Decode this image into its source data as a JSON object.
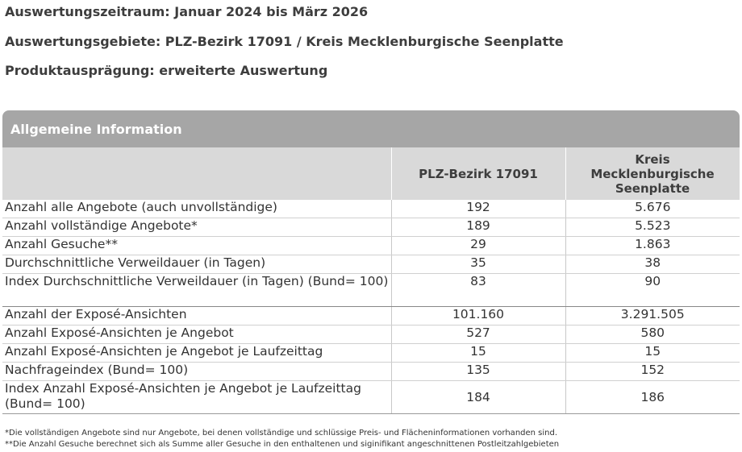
{
  "meta": {
    "zeitraum": "Auswertungszeitraum: Januar 2024 bis März 2026",
    "gebiete": "Auswertungsgebiete: PLZ-Bezirk 17091 / Kreis Mecklenburgische Seenplatte",
    "produkt": "Produktausprägung: erweiterte Auswertung"
  },
  "panel": {
    "title": "Allgemeine Information",
    "columns": [
      "",
      "PLZ-Bezirk 17091",
      "Kreis Mecklenburgische Seenplatte"
    ],
    "rows": [
      {
        "label": "Anzahl alle Angebote (auch unvollständige)",
        "plz": "192",
        "kreis": "5.676"
      },
      {
        "label": "Anzahl vollständige Angebote*",
        "plz": "189",
        "kreis": "5.523"
      },
      {
        "label": "Anzahl Gesuche**",
        "plz": "29",
        "kreis": "1.863"
      },
      {
        "label": "Durchschnittliche Verweildauer (in Tagen)",
        "plz": "35",
        "kreis": "38"
      },
      {
        "label": "Index Durchschnittliche Verweildauer (in Tagen) (Bund= 100)",
        "plz": "83",
        "kreis": "90"
      },
      {
        "label": "Anzahl der Exposé-Ansichten",
        "plz": "101.160",
        "kreis": "3.291.505"
      },
      {
        "label": "Anzahl Exposé-Ansichten je Angebot",
        "plz": "527",
        "kreis": "580"
      },
      {
        "label": "Anzahl Exposé-Ansichten je Angebot je Laufzeittag",
        "plz": "15",
        "kreis": "15"
      },
      {
        "label": "Nachfrageindex (Bund= 100)",
        "plz": "135",
        "kreis": "152"
      },
      {
        "label": "Index Anzahl Exposé-Ansichten je Angebot je Laufzeittag (Bund= 100)",
        "plz": "184",
        "kreis": "186"
      }
    ]
  },
  "footnotes": [
    "*Die vollständigen Angebote sind nur Angebote, bei denen vollständige und schlüssige Preis- und Flächeninformationen vorhanden sind.",
    "**Die Anzahl Gesuche berechnet sich als Summe aller Gesuche in den enthaltenen und siginifikant angeschnittenen Postleitzahlgebieten"
  ]
}
